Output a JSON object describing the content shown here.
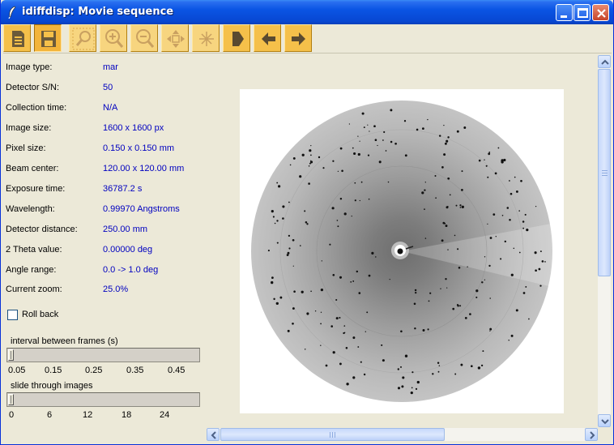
{
  "window": {
    "title": "idiffdisp: Movie sequence"
  },
  "toolbar": {
    "tools": [
      {
        "name": "open-document-tool",
        "icon": "document-icon",
        "state": "normal"
      },
      {
        "name": "save-tool",
        "icon": "floppy-disk-icon",
        "state": "pressed"
      },
      {
        "name": "zoom-region-tool",
        "icon": "magnifier-icon",
        "state": "disabled"
      },
      {
        "name": "zoom-in-tool",
        "icon": "zoom-in-icon",
        "state": "disabled"
      },
      {
        "name": "zoom-out-tool",
        "icon": "zoom-out-icon",
        "state": "disabled"
      },
      {
        "name": "pan-tool",
        "icon": "move-arrows-icon",
        "state": "disabled"
      },
      {
        "name": "center-tool",
        "icon": "crosshair-icon",
        "state": "disabled"
      },
      {
        "name": "play-tool",
        "icon": "play-icon",
        "state": "normal"
      },
      {
        "name": "previous-tool",
        "icon": "arrow-left-icon",
        "state": "normal"
      },
      {
        "name": "next-tool",
        "icon": "arrow-right-icon",
        "state": "normal"
      }
    ]
  },
  "info": [
    {
      "label": "Image type:",
      "value": "mar"
    },
    {
      "label": "Detector S/N:",
      "value": "50"
    },
    {
      "label": "Collection time:",
      "value": "N/A"
    },
    {
      "label": "Image size:",
      "value": "1600 x 1600 px"
    },
    {
      "label": "Pixel size:",
      "value": "0.150 x  0.150 mm"
    },
    {
      "label": "Beam center:",
      "value": "120.00 x 120.00 mm"
    },
    {
      "label": "Exposure time:",
      "value": "36787.2 s"
    },
    {
      "label": "Wavelength:",
      "value": "0.99970 Angstroms"
    },
    {
      "label": "Detector distance:",
      "value": "250.00 mm"
    },
    {
      "label": "2 Theta value:",
      "value": "0.00000 deg"
    },
    {
      "label": "Angle range:",
      "value": "0.0 -> 1.0 deg"
    },
    {
      "label": "Current zoom:",
      "value": "25.0%"
    }
  ],
  "rollback": {
    "label": "Roll back",
    "checked": false
  },
  "interval_slider": {
    "title": "interval between frames (s)",
    "ticks": [
      "0.05",
      "0.15",
      "0.25",
      "0.35",
      "0.45"
    ],
    "value": 0.05
  },
  "image_slider": {
    "title": "slide through images",
    "ticks": [
      "0",
      "6",
      "12",
      "18",
      "24"
    ],
    "value": 0
  },
  "colors": {
    "title_bar": "#0a54e3",
    "window_bg": "#ece9d8",
    "value_text": "#0000c0",
    "tool_button": "#f5c04a",
    "scrollbar": "#c6d8fb"
  }
}
